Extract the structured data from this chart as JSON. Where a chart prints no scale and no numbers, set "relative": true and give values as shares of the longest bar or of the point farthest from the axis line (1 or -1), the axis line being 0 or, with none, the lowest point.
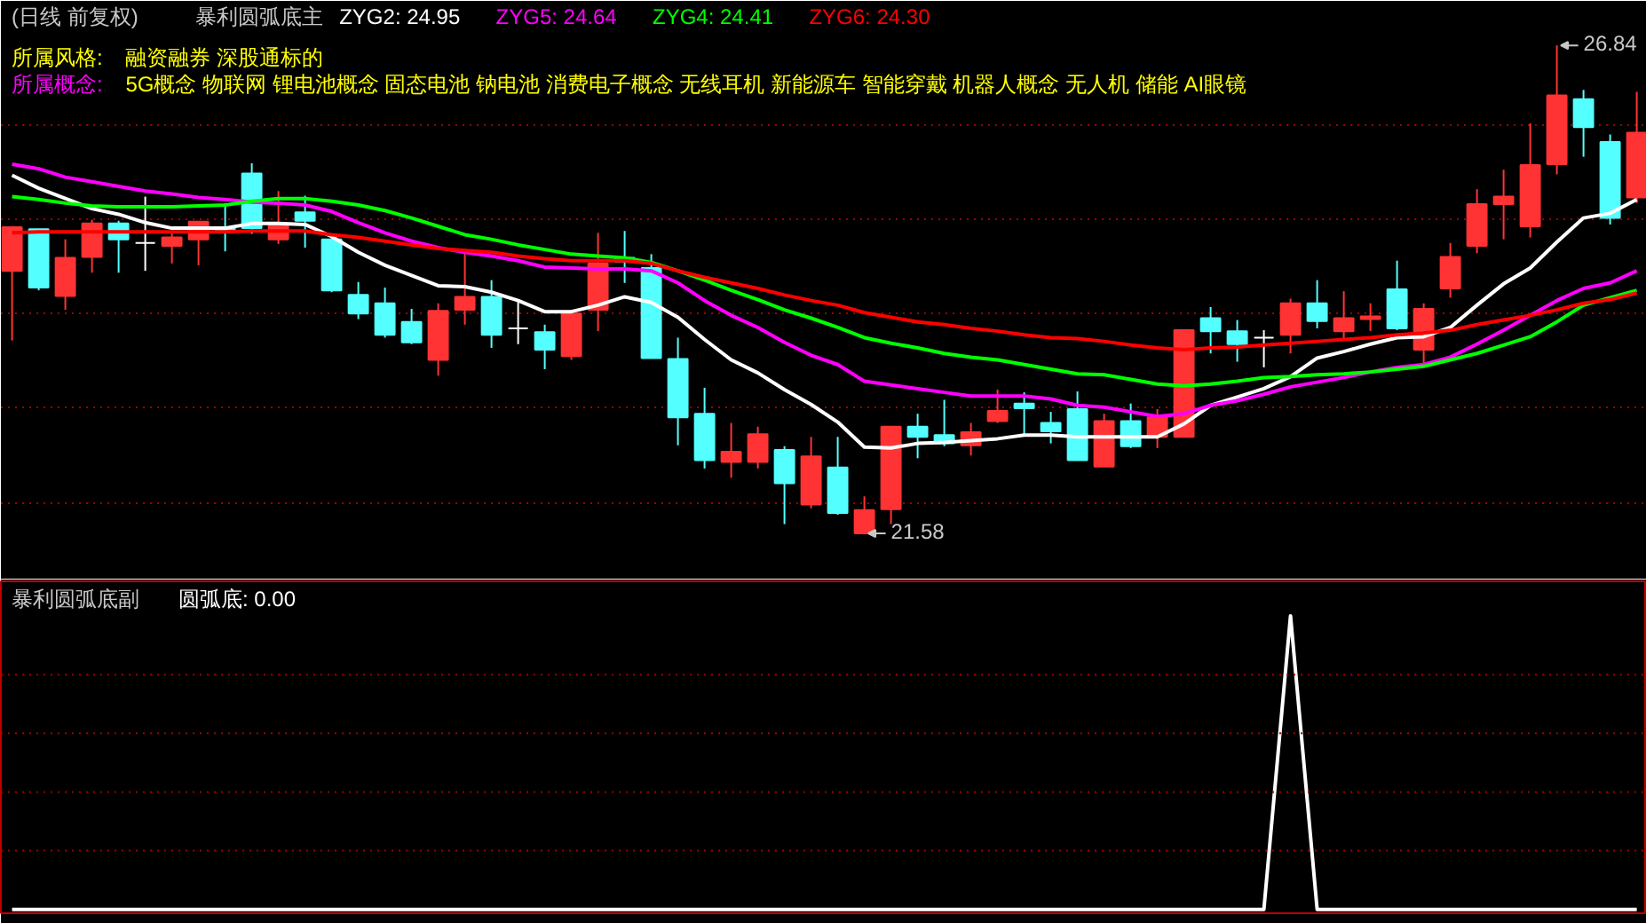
{
  "chart_data": [
    {
      "type": "candlestick",
      "title": "(日线 前复权)",
      "subtitle": "暴利圆弧底主",
      "categories": [
        null,
        null,
        null,
        null,
        null,
        null,
        null,
        null,
        null,
        null,
        null,
        null,
        null,
        null,
        null,
        null,
        null,
        null,
        null,
        null,
        null,
        null,
        null,
        null,
        null,
        null,
        null,
        null,
        null,
        null,
        null,
        null,
        null,
        null,
        null,
        null,
        null,
        null,
        null,
        null,
        null,
        null,
        null,
        null,
        null,
        null,
        null,
        null,
        null,
        null,
        null,
        null,
        null,
        null,
        null,
        null,
        null,
        null,
        null,
        null,
        null,
        null
      ],
      "ohlc": [
        [
          24.41,
          24.88,
          23.66,
          24.88
        ],
        [
          24.86,
          24.86,
          24.2,
          24.23
        ],
        [
          24.14,
          24.75,
          23.99,
          24.55
        ],
        [
          24.56,
          24.96,
          24.39,
          24.92
        ],
        [
          24.92,
          24.95,
          24.39,
          24.75
        ],
        [
          24.71,
          25.21,
          24.41,
          24.71
        ],
        [
          24.68,
          24.82,
          24.49,
          24.77
        ],
        [
          24.75,
          24.94,
          24.47,
          24.94
        ],
        [
          24.88,
          25.14,
          24.62,
          24.84
        ],
        [
          25.46,
          25.57,
          24.81,
          24.87
        ],
        [
          24.75,
          25.27,
          24.7,
          24.9
        ],
        [
          25.04,
          25.22,
          24.66,
          24.95
        ],
        [
          24.75,
          24.79,
          24.18,
          24.2
        ],
        [
          24.15,
          24.29,
          23.89,
          23.95
        ],
        [
          24.06,
          24.23,
          23.69,
          23.72
        ],
        [
          23.86,
          24.0,
          23.62,
          23.64
        ],
        [
          23.45,
          24.06,
          23.28,
          23.98
        ],
        [
          23.99,
          24.61,
          23.83,
          24.13
        ],
        [
          24.13,
          24.31,
          23.58,
          23.72
        ],
        [
          23.79,
          24.09,
          23.62,
          23.79
        ],
        [
          23.75,
          23.83,
          23.35,
          23.56
        ],
        [
          23.49,
          23.99,
          23.45,
          23.95
        ],
        [
          23.99,
          24.82,
          23.76,
          24.49
        ],
        [
          24.55,
          24.84,
          24.28,
          24.51
        ],
        [
          24.44,
          24.59,
          23.47,
          23.47
        ],
        [
          23.46,
          23.69,
          22.53,
          22.83
        ],
        [
          22.87,
          23.15,
          22.28,
          22.37
        ],
        [
          22.35,
          22.77,
          22.18,
          22.46
        ],
        [
          22.35,
          22.73,
          22.28,
          22.65
        ],
        [
          22.48,
          22.52,
          21.68,
          22.12
        ],
        [
          21.89,
          22.62,
          21.85,
          22.41
        ],
        [
          22.29,
          22.62,
          21.78,
          21.8
        ],
        [
          21.58,
          21.98,
          21.58,
          21.83
        ],
        [
          21.84,
          22.73,
          21.68,
          22.73
        ],
        [
          22.73,
          22.87,
          22.39,
          22.62
        ],
        [
          22.64,
          23.02,
          22.52,
          22.55
        ],
        [
          22.53,
          22.77,
          22.42,
          22.67
        ],
        [
          22.79,
          23.13,
          22.77,
          22.9
        ],
        [
          22.98,
          23.1,
          22.65,
          22.93
        ],
        [
          22.77,
          22.89,
          22.55,
          22.68
        ],
        [
          22.92,
          23.11,
          22.37,
          22.37
        ],
        [
          22.3,
          22.87,
          22.3,
          22.79
        ],
        [
          22.79,
          22.98,
          22.5,
          22.52
        ],
        [
          22.62,
          22.92,
          22.5,
          22.83
        ],
        [
          22.62,
          23.77,
          22.62,
          23.77
        ],
        [
          23.9,
          24.02,
          23.52,
          23.76
        ],
        [
          23.76,
          23.88,
          23.43,
          23.62
        ],
        [
          23.69,
          23.77,
          23.37,
          23.69
        ],
        [
          23.72,
          24.11,
          23.52,
          24.06
        ],
        [
          24.06,
          24.31,
          23.79,
          23.87
        ],
        [
          23.76,
          24.19,
          23.68,
          23.9
        ],
        [
          23.89,
          24.06,
          23.76,
          23.92
        ],
        [
          24.21,
          24.52,
          23.77,
          23.79
        ],
        [
          23.56,
          24.06,
          23.41,
          24.0
        ],
        [
          24.22,
          24.71,
          24.12,
          24.56
        ],
        [
          24.68,
          25.29,
          24.6,
          25.13
        ],
        [
          25.13,
          25.5,
          24.75,
          25.21
        ],
        [
          24.89,
          26.0,
          24.77,
          25.55
        ],
        [
          25.56,
          26.84,
          25.45,
          26.3
        ],
        [
          26.26,
          26.36,
          25.64,
          25.96
        ],
        [
          25.8,
          25.88,
          24.91,
          24.98
        ],
        [
          25.2,
          26.34,
          25.14,
          25.9
        ]
      ],
      "colors": [
        "#ff3333",
        "#54ffff",
        "#ff3333",
        "#ff3333",
        "#54ffff",
        "#ffffff",
        "#ff3333",
        "#ff3333",
        "#54ffff",
        "#54ffff",
        "#ff3333",
        "#54ffff",
        "#54ffff",
        "#54ffff",
        "#54ffff",
        "#54ffff",
        "#ff3333",
        "#ff3333",
        "#54ffff",
        "#ffffff",
        "#54ffff",
        "#ff3333",
        "#ff3333",
        "#54ffff",
        "#54ffff",
        "#54ffff",
        "#54ffff",
        "#ff3333",
        "#ff3333",
        "#54ffff",
        "#ff3333",
        "#54ffff",
        "#ff3333",
        "#ff3333",
        "#54ffff",
        "#54ffff",
        "#ff3333",
        "#ff3333",
        "#54ffff",
        "#54ffff",
        "#54ffff",
        "#ff3333",
        "#54ffff",
        "#ff3333",
        "#ff3333",
        "#54ffff",
        "#54ffff",
        "#ffffff",
        "#ff3333",
        "#54ffff",
        "#ff3333",
        "#ff3333",
        "#54ffff",
        "#ff3333",
        "#ff3333",
        "#ff3333",
        "#ff3333",
        "#ff3333",
        "#ff3333",
        "#54ffff",
        "#54ffff",
        "#ff3333"
      ],
      "series": [
        {
          "type": "line",
          "color": "#ffffff",
          "values": [
            25.44,
            25.3,
            25.19,
            25.08,
            25.02,
            24.93,
            24.87,
            24.87,
            24.87,
            24.92,
            24.92,
            24.91,
            24.78,
            24.61,
            24.47,
            24.36,
            24.25,
            24.24,
            24.18,
            24.09,
            23.97,
            23.97,
            24.04,
            24.13,
            24.07,
            23.91,
            23.67,
            23.45,
            23.31,
            23.13,
            22.97,
            22.78,
            22.51,
            22.5,
            22.55,
            22.56,
            22.58,
            22.6,
            22.64,
            22.64,
            22.62,
            22.62,
            22.62,
            22.62,
            22.76,
            22.96,
            23.05,
            23.14,
            23.27,
            23.47,
            23.54,
            23.62,
            23.69,
            23.7,
            23.8,
            24.04,
            24.27,
            24.44,
            24.72,
            24.98,
            25.03,
            25.18
          ]
        },
        {
          "type": "line",
          "color": "#ff00ff",
          "values": [
            25.56,
            25.51,
            25.42,
            25.37,
            25.32,
            25.27,
            25.24,
            25.2,
            25.18,
            25.15,
            25.14,
            25.12,
            25.05,
            24.93,
            24.82,
            24.73,
            24.66,
            24.61,
            24.57,
            24.52,
            24.45,
            24.44,
            24.43,
            24.43,
            24.41,
            24.28,
            24.09,
            23.93,
            23.8,
            23.64,
            23.5,
            23.4,
            23.22,
            23.18,
            23.14,
            23.1,
            23.06,
            23.06,
            23.06,
            23.03,
            22.96,
            22.94,
            22.89,
            22.84,
            22.87,
            22.96,
            23.01,
            23.08,
            23.16,
            23.21,
            23.26,
            23.32,
            23.37,
            23.4,
            23.48,
            23.62,
            23.77,
            23.93,
            24.09,
            24.22,
            24.28,
            24.41
          ]
        },
        {
          "type": "line",
          "color": "#00ff00",
          "values": [
            25.21,
            25.18,
            25.14,
            25.11,
            25.1,
            25.1,
            25.1,
            25.11,
            25.12,
            25.16,
            25.19,
            25.19,
            25.16,
            25.12,
            25.06,
            24.98,
            24.89,
            24.8,
            24.75,
            24.69,
            24.64,
            24.59,
            24.57,
            24.55,
            24.5,
            24.41,
            24.31,
            24.2,
            24.1,
            23.99,
            23.9,
            23.8,
            23.69,
            23.63,
            23.58,
            23.52,
            23.48,
            23.45,
            23.4,
            23.35,
            23.3,
            23.29,
            23.24,
            23.19,
            23.17,
            23.19,
            23.22,
            23.26,
            23.27,
            23.29,
            23.3,
            23.32,
            23.35,
            23.38,
            23.45,
            23.52,
            23.61,
            23.7,
            23.86,
            24.04,
            24.12,
            24.2
          ]
        },
        {
          "type": "line",
          "color": "#ff0000",
          "values": [
            24.82,
            24.83,
            24.83,
            24.83,
            24.83,
            24.83,
            24.83,
            24.83,
            24.83,
            24.84,
            24.84,
            24.84,
            24.8,
            24.77,
            24.73,
            24.69,
            24.65,
            24.63,
            24.61,
            24.57,
            24.54,
            24.52,
            24.52,
            24.52,
            24.49,
            24.41,
            24.34,
            24.28,
            24.22,
            24.15,
            24.09,
            24.04,
            23.96,
            23.91,
            23.86,
            23.83,
            23.79,
            23.76,
            23.72,
            23.69,
            23.68,
            23.65,
            23.61,
            23.58,
            23.56,
            23.58,
            23.59,
            23.61,
            23.63,
            23.65,
            23.67,
            23.69,
            23.72,
            23.74,
            23.77,
            23.83,
            23.88,
            23.93,
            23.99,
            24.06,
            24.1,
            24.17
          ]
        }
      ],
      "ylim": [
        21.14,
        27.32
      ],
      "yticks": [
        {
          "value": 25.99,
          "label": null
        },
        {
          "value": 24.97,
          "label": null
        },
        {
          "value": 23.95,
          "label": null
        },
        {
          "value": 22.94,
          "label": null
        },
        {
          "value": 21.9,
          "label": null
        }
      ],
      "grid": "y",
      "tick_labels": false,
      "annotations": [
        "ZYG2: 24.95",
        "ZYG5: 24.64",
        "ZYG4: 24.41",
        "ZYG6: 24.30",
        "所属风格:",
        "融资融券 深股通标的",
        "所属概念:",
        "5G概念 物联网 锂电池概念 固态电池 钠电池 消费电子概念 无线耳机 新能源车 智能穿戴 机器人概念 无人机 储能 AI眼镜",
        "26.84",
        "21.58"
      ]
    },
    {
      "type": "line",
      "title": "暴利圆弧底副",
      "categories": [
        null,
        null,
        null,
        null,
        null,
        null,
        null,
        null,
        null,
        null,
        null,
        null,
        null,
        null,
        null,
        null,
        null,
        null,
        null,
        null,
        null,
        null,
        null,
        null,
        null,
        null,
        null,
        null,
        null,
        null,
        null,
        null,
        null,
        null,
        null,
        null,
        null,
        null,
        null,
        null,
        null,
        null,
        null,
        null,
        null,
        null,
        null,
        null,
        null,
        null,
        null,
        null,
        null,
        null,
        null,
        null,
        null,
        null,
        null,
        null,
        null,
        null
      ],
      "series": [
        {
          "color": "#ffffff",
          "values": [
            0,
            0,
            0,
            0,
            0,
            0,
            0,
            0,
            0,
            0,
            0,
            0,
            0,
            0,
            0,
            0,
            0,
            0,
            0,
            0,
            0,
            0,
            0,
            0,
            0,
            0,
            0,
            0,
            0,
            0,
            0,
            0,
            0,
            0,
            0,
            0,
            0,
            0,
            0,
            0,
            0,
            0,
            0,
            0,
            0,
            0,
            0,
            0,
            1,
            0,
            0,
            0,
            0,
            0,
            0,
            0,
            0,
            0,
            0,
            0,
            0,
            0
          ]
        }
      ],
      "relative": true,
      "tick_labels": false,
      "ref_lines": [
        {
          "axis": "y",
          "value": 0.2,
          "color": "#a00000",
          "line_style": "dotted"
        },
        {
          "axis": "y",
          "value": 0.4,
          "color": "#a00000",
          "line_style": "dotted"
        },
        {
          "axis": "y",
          "value": 0.6,
          "color": "#a00000",
          "line_style": "dotted"
        },
        {
          "axis": "y",
          "value": 0.8,
          "color": "#a00000",
          "line_style": "dotted"
        }
      ],
      "annotations": [
        "圆弧底: 0.00"
      ]
    }
  ]
}
